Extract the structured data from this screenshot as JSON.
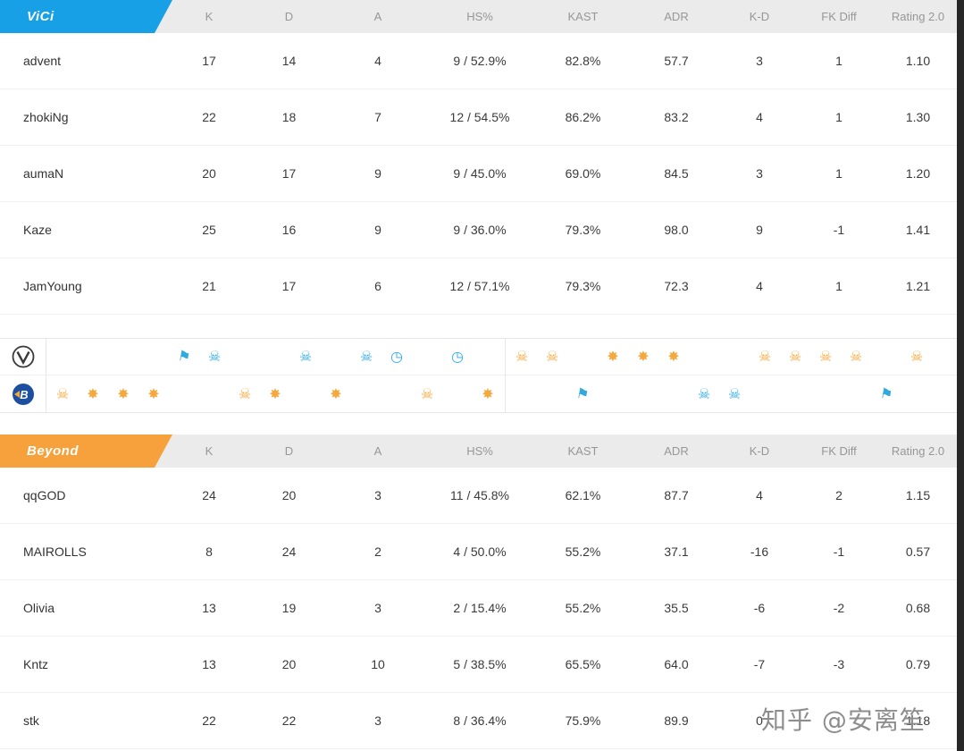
{
  "columns": [
    "K",
    "D",
    "A",
    "HS%",
    "KAST",
    "ADR",
    "K-D",
    "FK Diff",
    "Rating 2.0"
  ],
  "teams": [
    {
      "name": "ViCi",
      "banner_color": "#18a0e6",
      "players": [
        {
          "name": "advent",
          "stats": [
            "17",
            "14",
            "4",
            "9 / 52.9%",
            "82.8%",
            "57.7",
            "3",
            "1",
            "1.10"
          ]
        },
        {
          "name": "zhokiNg",
          "stats": [
            "22",
            "18",
            "7",
            "12 / 54.5%",
            "86.2%",
            "83.2",
            "4",
            "1",
            "1.30"
          ]
        },
        {
          "name": "aumaN",
          "stats": [
            "20",
            "17",
            "9",
            "9 / 45.0%",
            "69.0%",
            "84.5",
            "3",
            "1",
            "1.20"
          ]
        },
        {
          "name": "Kaze",
          "stats": [
            "25",
            "16",
            "9",
            "9 / 36.0%",
            "79.3%",
            "98.0",
            "9",
            "-1",
            "1.41"
          ]
        },
        {
          "name": "JamYoung",
          "stats": [
            "21",
            "17",
            "6",
            "12 / 57.1%",
            "79.3%",
            "72.3",
            "4",
            "1",
            "1.21"
          ]
        }
      ]
    },
    {
      "name": "Beyond",
      "banner_color": "#f7a13c",
      "players": [
        {
          "name": "qqGOD",
          "stats": [
            "24",
            "20",
            "3",
            "11 / 45.8%",
            "62.1%",
            "87.7",
            "4",
            "2",
            "1.15"
          ]
        },
        {
          "name": "MAIROLLS",
          "stats": [
            "8",
            "24",
            "2",
            "4 / 50.0%",
            "55.2%",
            "37.1",
            "-16",
            "-1",
            "0.57"
          ]
        },
        {
          "name": "Olivia",
          "stats": [
            "13",
            "19",
            "3",
            "2 / 15.4%",
            "55.2%",
            "35.5",
            "-6",
            "-2",
            "0.68"
          ]
        },
        {
          "name": "Kntz",
          "stats": [
            "13",
            "20",
            "10",
            "5 / 38.5%",
            "65.5%",
            "64.0",
            "-7",
            "-3",
            "0.79"
          ]
        },
        {
          "name": "stk",
          "stats": [
            "22",
            "22",
            "3",
            "8 / 36.4%",
            "75.9%",
            "89.9",
            "0",
            "",
            "1.18"
          ]
        }
      ]
    }
  ],
  "round_history": {
    "icon_glyphs": {
      "skull": "☠",
      "explosion": "✸",
      "clock": "◷",
      "flag": "⚑"
    },
    "side_colors": {
      "ct": "#2faae1",
      "t": "#f5a83c"
    },
    "rows": [
      {
        "team": "ViCi",
        "wins": [
          {
            "round": 5,
            "type": "flag",
            "side": "ct"
          },
          {
            "round": 6,
            "type": "skull",
            "side": "ct"
          },
          {
            "round": 9,
            "type": "skull",
            "side": "ct"
          },
          {
            "round": 11,
            "type": "skull",
            "side": "ct"
          },
          {
            "round": 12,
            "type": "clock",
            "side": "ct"
          },
          {
            "round": 14,
            "type": "clock",
            "side": "ct"
          },
          {
            "round": 16,
            "type": "skull",
            "side": "t"
          },
          {
            "round": 17,
            "type": "skull",
            "side": "t"
          },
          {
            "round": 19,
            "type": "explosion",
            "side": "t"
          },
          {
            "round": 20,
            "type": "explosion",
            "side": "t"
          },
          {
            "round": 21,
            "type": "explosion",
            "side": "t"
          },
          {
            "round": 24,
            "type": "skull",
            "side": "t"
          },
          {
            "round": 25,
            "type": "skull",
            "side": "t"
          },
          {
            "round": 26,
            "type": "skull",
            "side": "t"
          },
          {
            "round": 27,
            "type": "skull",
            "side": "t"
          },
          {
            "round": 29,
            "type": "skull",
            "side": "t"
          }
        ]
      },
      {
        "team": "Beyond",
        "wins": [
          {
            "round": 1,
            "type": "skull",
            "side": "t"
          },
          {
            "round": 2,
            "type": "explosion",
            "side": "t"
          },
          {
            "round": 3,
            "type": "explosion",
            "side": "t"
          },
          {
            "round": 4,
            "type": "explosion",
            "side": "t"
          },
          {
            "round": 7,
            "type": "skull",
            "side": "t"
          },
          {
            "round": 8,
            "type": "explosion",
            "side": "t"
          },
          {
            "round": 10,
            "type": "explosion",
            "side": "t"
          },
          {
            "round": 13,
            "type": "skull",
            "side": "t"
          },
          {
            "round": 15,
            "type": "explosion",
            "side": "t"
          },
          {
            "round": 18,
            "type": "flag",
            "side": "ct"
          },
          {
            "round": 22,
            "type": "skull",
            "side": "ct"
          },
          {
            "round": 23,
            "type": "skull",
            "side": "ct"
          },
          {
            "round": 28,
            "type": "flag",
            "side": "ct"
          }
        ]
      }
    ]
  },
  "watermark": "知乎 @安离笙"
}
